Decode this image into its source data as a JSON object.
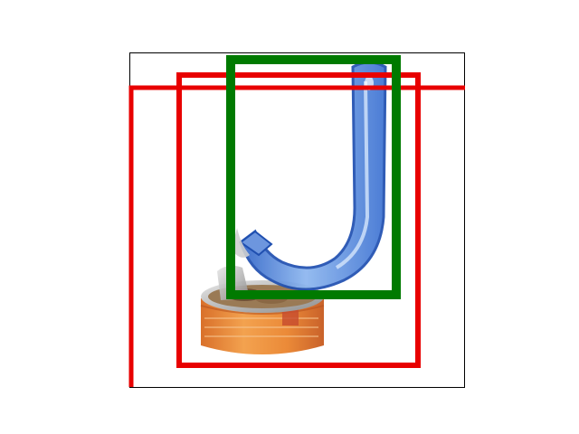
{
  "figure": {
    "background": "#ffffff",
    "frame_color": "#000000"
  },
  "photo": {
    "subject_items": [
      "can-opener-scoop",
      "cat-food-can"
    ],
    "scoop_color": "#4f86d9",
    "can_label_color": "#e98a36"
  },
  "overlays": {
    "box_colors": [
      "#e80000",
      "#e80000",
      "#007a00"
    ]
  }
}
